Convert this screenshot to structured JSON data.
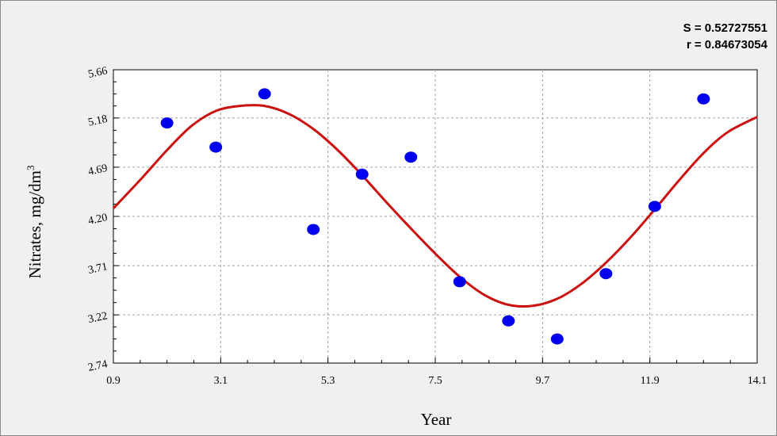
{
  "stats": {
    "s_label": "S = 0.52727551",
    "r_label": "r = 0.84673054"
  },
  "chart_data": {
    "type": "scatter",
    "xlabel": "Year",
    "ylabel": "Nitrates, mg/dm",
    "ylabel_superscript": "3",
    "xlim": [
      0.9,
      14.1
    ],
    "ylim": [
      2.74,
      5.66
    ],
    "x_ticks": [
      "0.9",
      "3.1",
      "5.3",
      "7.5",
      "9.7",
      "11.9",
      "14.1"
    ],
    "y_ticks": [
      "2.74",
      "3.22",
      "3.71",
      "4.20",
      "4.69",
      "5.18",
      "5.66"
    ],
    "grid": true,
    "series": [
      {
        "kind": "points",
        "color": "#0000ee",
        "x": [
          2.0,
          3.0,
          4.0,
          5.0,
          6.0,
          7.0,
          8.0,
          9.0,
          10.0,
          11.0,
          12.0,
          13.0
        ],
        "y": [
          5.13,
          4.89,
          5.42,
          4.07,
          4.62,
          4.79,
          3.55,
          3.16,
          2.98,
          3.63,
          4.3,
          5.37
        ]
      },
      {
        "kind": "fit-curve",
        "color": "#cc1111",
        "x": [
          0.9,
          1.5,
          2.0,
          2.5,
          3.0,
          3.5,
          4.0,
          4.5,
          5.0,
          5.5,
          6.0,
          6.5,
          7.0,
          7.5,
          8.0,
          8.5,
          9.0,
          9.5,
          10.0,
          10.5,
          11.0,
          11.5,
          12.0,
          12.5,
          13.0,
          13.5,
          14.1
        ],
        "y": [
          4.28,
          4.59,
          4.86,
          5.1,
          5.25,
          5.3,
          5.3,
          5.22,
          5.07,
          4.86,
          4.61,
          4.34,
          4.08,
          3.83,
          3.6,
          3.42,
          3.32,
          3.31,
          3.38,
          3.53,
          3.74,
          3.99,
          4.27,
          4.56,
          4.83,
          5.04,
          5.19
        ]
      }
    ]
  }
}
